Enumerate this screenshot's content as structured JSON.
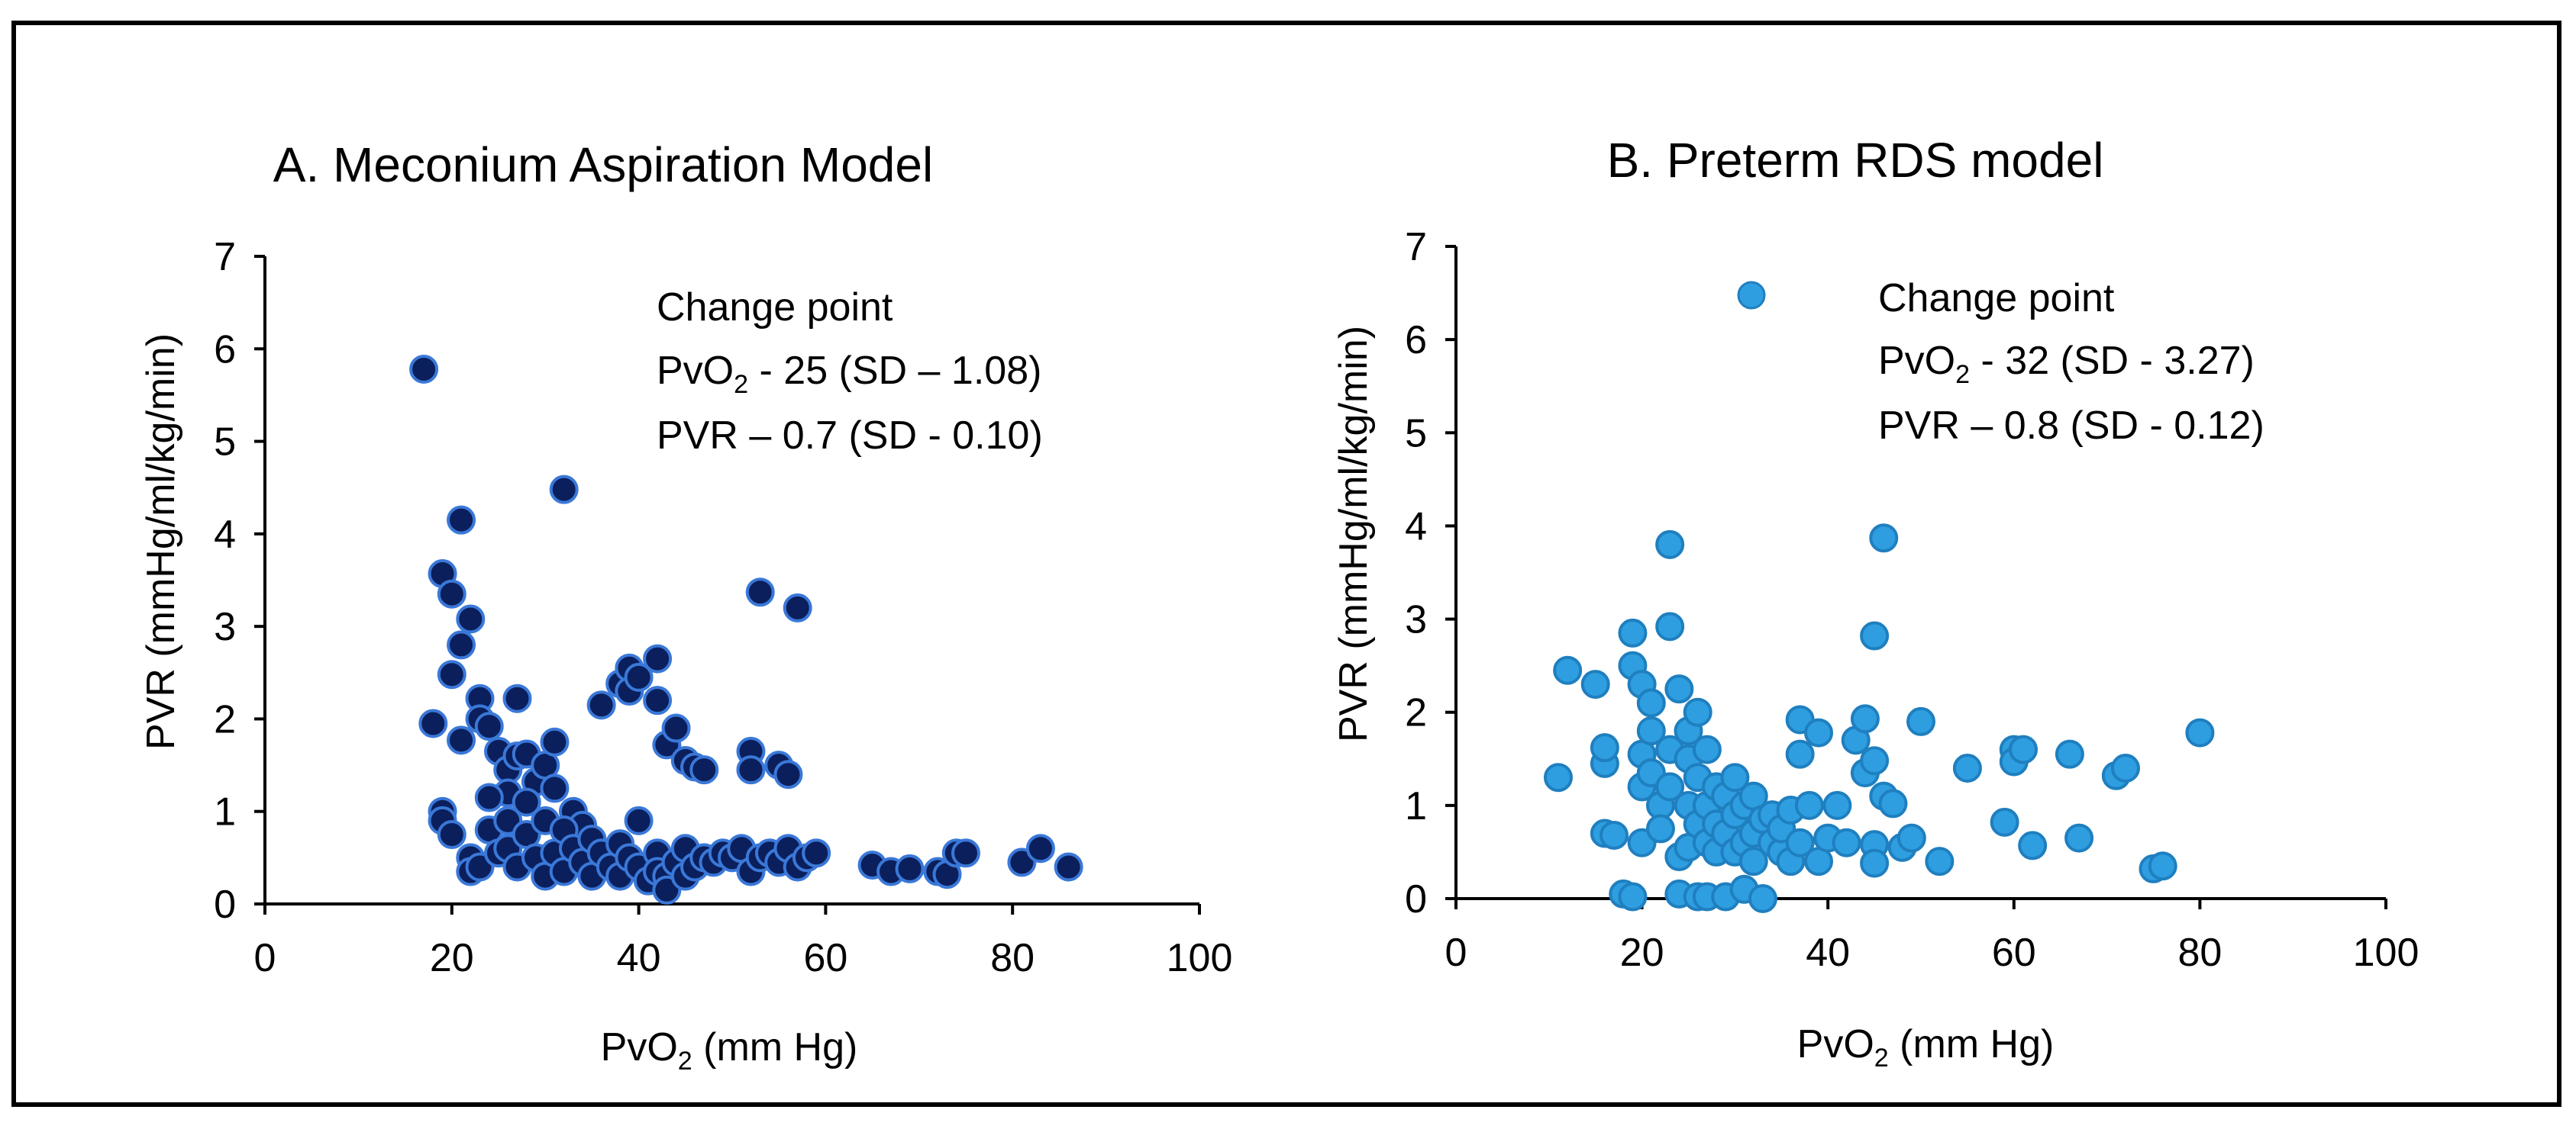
{
  "chart_data": [
    {
      "type": "scatter",
      "title": "A. Meconium Aspiration Model",
      "xlabel_main": "PvO",
      "xlabel_sub": "2",
      "xlabel_rest": " (mm Hg)",
      "ylabel": "PVR (mmHg/ml/kg/min)",
      "xlim": [
        0,
        100
      ],
      "ylim": [
        0,
        7
      ],
      "xticks": [
        0,
        20,
        40,
        60,
        80,
        100
      ],
      "yticks": [
        0,
        1,
        2,
        3,
        4,
        5,
        6,
        7
      ],
      "annotation": {
        "line1": "Change point",
        "line2_main": "PvO",
        "line2_sub": "2",
        "line2_rest": " -  25 (SD – 1.08)",
        "line3": "PVR – 0.7 (SD - 0.10)"
      },
      "colors": {
        "fill": "#0a1f5c",
        "stroke": "#3a78d8"
      },
      "series": [
        {
          "name": "Meconium",
          "points": [
            [
              17,
              5.78
            ],
            [
              18,
              1.95
            ],
            [
              19,
              3.57
            ],
            [
              20,
              3.35
            ],
            [
              20,
              2.48
            ],
            [
              21,
              4.15
            ],
            [
              21,
              2.8
            ],
            [
              22,
              3.08
            ],
            [
              21,
              1.77
            ],
            [
              23,
              2.22
            ],
            [
              23,
              2.0
            ],
            [
              24,
              1.92
            ],
            [
              25,
              1.65
            ],
            [
              26,
              1.45
            ],
            [
              27,
              1.6
            ],
            [
              27,
              2.22
            ],
            [
              26,
              1.2
            ],
            [
              28,
              1.62
            ],
            [
              29,
              1.32
            ],
            [
              30,
              1.5
            ],
            [
              31,
              1.75
            ],
            [
              32,
              4.48
            ],
            [
              31,
              1.25
            ],
            [
              33,
              1.0
            ],
            [
              34,
              0.85
            ],
            [
              36,
              2.15
            ],
            [
              38,
              2.38
            ],
            [
              39,
              2.55
            ],
            [
              39,
              2.3
            ],
            [
              40,
              2.45
            ],
            [
              42,
              2.65
            ],
            [
              42,
              2.2
            ],
            [
              43,
              1.72
            ],
            [
              44,
              1.9
            ],
            [
              45,
              1.55
            ],
            [
              46,
              1.48
            ],
            [
              47,
              1.45
            ],
            [
              52,
              1.65
            ],
            [
              52,
              1.45
            ],
            [
              53,
              3.37
            ],
            [
              55,
              1.5
            ],
            [
              56,
              1.4
            ],
            [
              57,
              3.2
            ],
            [
              19,
              1.0
            ],
            [
              19,
              0.9
            ],
            [
              20,
              0.75
            ],
            [
              22,
              0.5
            ],
            [
              22,
              0.35
            ],
            [
              23,
              0.4
            ],
            [
              24,
              0.8
            ],
            [
              24,
              1.15
            ],
            [
              25,
              0.55
            ],
            [
              26,
              0.9
            ],
            [
              26,
              0.6
            ],
            [
              27,
              0.4
            ],
            [
              28,
              0.75
            ],
            [
              28,
              1.1
            ],
            [
              29,
              0.5
            ],
            [
              30,
              0.9
            ],
            [
              30,
              0.3
            ],
            [
              31,
              0.55
            ],
            [
              32,
              0.8
            ],
            [
              32,
              0.35
            ],
            [
              33,
              0.6
            ],
            [
              34,
              0.45
            ],
            [
              35,
              0.7
            ],
            [
              35,
              0.3
            ],
            [
              36,
              0.55
            ],
            [
              37,
              0.4
            ],
            [
              38,
              0.65
            ],
            [
              38,
              0.3
            ],
            [
              39,
              0.5
            ],
            [
              40,
              0.9
            ],
            [
              40,
              0.4
            ],
            [
              41,
              0.25
            ],
            [
              42,
              0.55
            ],
            [
              42,
              0.35
            ],
            [
              43,
              0.3
            ],
            [
              43,
              0.15
            ],
            [
              44,
              0.45
            ],
            [
              45,
              0.6
            ],
            [
              45,
              0.3
            ],
            [
              46,
              0.4
            ],
            [
              47,
              0.5
            ],
            [
              48,
              0.45
            ],
            [
              49,
              0.55
            ],
            [
              50,
              0.5
            ],
            [
              51,
              0.6
            ],
            [
              52,
              0.35
            ],
            [
              53,
              0.5
            ],
            [
              54,
              0.55
            ],
            [
              55,
              0.45
            ],
            [
              56,
              0.6
            ],
            [
              57,
              0.4
            ],
            [
              58,
              0.5
            ],
            [
              59,
              0.55
            ],
            [
              65,
              0.42
            ],
            [
              67,
              0.35
            ],
            [
              69,
              0.38
            ],
            [
              72,
              0.35
            ],
            [
              73,
              0.32
            ],
            [
              74,
              0.55
            ],
            [
              75,
              0.55
            ],
            [
              81,
              0.45
            ],
            [
              83,
              0.6
            ],
            [
              86,
              0.4
            ]
          ]
        }
      ]
    },
    {
      "type": "scatter",
      "title": "B. Preterm RDS model",
      "xlabel_main": "PvO",
      "xlabel_sub": "2",
      "xlabel_rest": " (mm Hg)",
      "ylabel": "PVR (mmHg/ml/kg/min)",
      "xlim": [
        0,
        100
      ],
      "ylim": [
        0,
        7
      ],
      "xticks": [
        0,
        20,
        40,
        60,
        80,
        100
      ],
      "yticks": [
        0,
        1,
        2,
        3,
        4,
        5,
        6,
        7
      ],
      "annotation": {
        "line1": "Change point",
        "line2_main": "PvO",
        "line2_sub": "2",
        "line2_rest": " -  32 (SD - 3.27)",
        "line3": "PVR – 0.8 (SD - 0.12)"
      },
      "legend_marker": true,
      "colors": {
        "fill": "#2e9ee0",
        "stroke": "#1f7fbf"
      },
      "series": [
        {
          "name": "Preterm RDS",
          "points": [
            [
              11,
              1.3
            ],
            [
              12,
              2.45
            ],
            [
              15,
              2.3
            ],
            [
              16,
              0.7
            ],
            [
              16,
              1.45
            ],
            [
              16,
              1.62
            ],
            [
              17,
              0.68
            ],
            [
              18,
              0.05
            ],
            [
              19,
              2.85
            ],
            [
              19,
              2.5
            ],
            [
              19,
              0.02
            ],
            [
              20,
              2.3
            ],
            [
              20,
              1.55
            ],
            [
              20,
              1.2
            ],
            [
              20,
              0.6
            ],
            [
              21,
              2.1
            ],
            [
              21,
              1.8
            ],
            [
              21,
              1.35
            ],
            [
              22,
              1.0
            ],
            [
              22,
              0.75
            ],
            [
              23,
              2.92
            ],
            [
              23,
              3.8
            ],
            [
              23,
              1.6
            ],
            [
              23,
              1.2
            ],
            [
              24,
              2.25
            ],
            [
              24,
              0.05
            ],
            [
              24,
              0.45
            ],
            [
              25,
              1.8
            ],
            [
              25,
              1.5
            ],
            [
              25,
              1.0
            ],
            [
              25,
              0.55
            ],
            [
              26,
              2.0
            ],
            [
              26,
              1.3
            ],
            [
              26,
              0.8
            ],
            [
              26,
              0.02
            ],
            [
              27,
              1.6
            ],
            [
              27,
              1.0
            ],
            [
              27,
              0.6
            ],
            [
              27,
              0.02
            ],
            [
              28,
              1.2
            ],
            [
              28,
              0.8
            ],
            [
              28,
              0.5
            ],
            [
              29,
              1.1
            ],
            [
              29,
              0.7
            ],
            [
              29,
              0.02
            ],
            [
              30,
              1.3
            ],
            [
              30,
              0.9
            ],
            [
              30,
              0.5
            ],
            [
              31,
              1.0
            ],
            [
              31,
              0.6
            ],
            [
              31,
              0.1
            ],
            [
              32,
              1.1
            ],
            [
              32,
              0.7
            ],
            [
              32,
              0.4
            ],
            [
              33,
              0.0
            ],
            [
              33,
              0.85
            ],
            [
              34,
              0.6
            ],
            [
              34,
              0.9
            ],
            [
              35,
              0.5
            ],
            [
              35,
              0.75
            ],
            [
              36,
              0.95
            ],
            [
              36,
              0.4
            ],
            [
              37,
              1.92
            ],
            [
              37,
              1.55
            ],
            [
              37,
              0.6
            ],
            [
              38,
              1.0
            ],
            [
              39,
              1.78
            ],
            [
              39,
              0.4
            ],
            [
              40,
              0.65
            ],
            [
              41,
              1.0
            ],
            [
              42,
              0.6
            ],
            [
              43,
              1.7
            ],
            [
              44,
              1.93
            ],
            [
              44,
              1.35
            ],
            [
              45,
              2.82
            ],
            [
              45,
              1.48
            ],
            [
              45,
              0.58
            ],
            [
              45,
              0.38
            ],
            [
              46,
              3.87
            ],
            [
              46,
              1.1
            ],
            [
              47,
              1.02
            ],
            [
              48,
              0.55
            ],
            [
              49,
              0.65
            ],
            [
              50,
              1.9
            ],
            [
              52,
              0.4
            ],
            [
              55,
              1.4
            ],
            [
              59,
              0.82
            ],
            [
              60,
              1.6
            ],
            [
              60,
              1.47
            ],
            [
              61,
              1.6
            ],
            [
              62,
              0.57
            ],
            [
              66,
              1.55
            ],
            [
              67,
              0.65
            ],
            [
              71,
              1.32
            ],
            [
              72,
              1.4
            ],
            [
              75,
              0.32
            ],
            [
              76,
              0.35
            ],
            [
              80,
              1.78
            ]
          ]
        }
      ]
    }
  ]
}
